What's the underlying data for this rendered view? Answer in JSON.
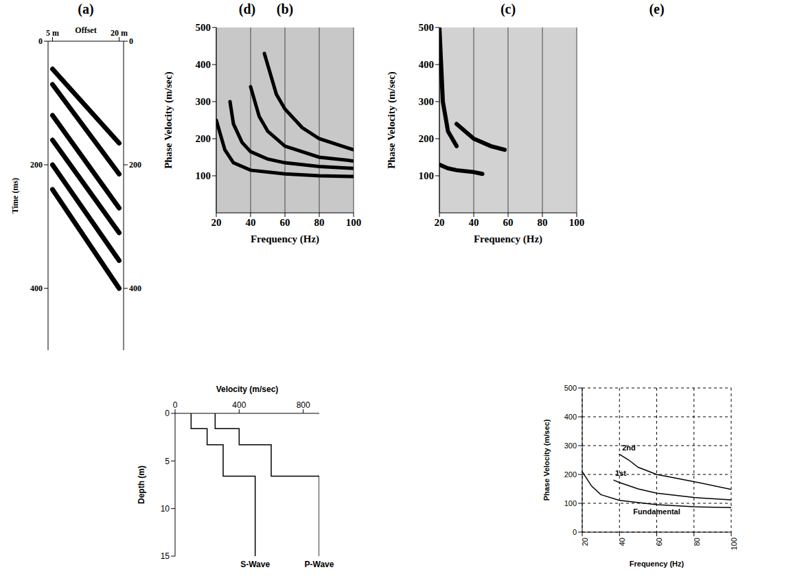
{
  "chart_data": [
    {
      "type": "line",
      "title": "(a)",
      "x_label": "Offset",
      "y_label": "Time (ms)",
      "xlim": [
        4,
        21
      ],
      "xticks": [
        {
          "value": 5,
          "label": "5 m"
        },
        {
          "value": 20,
          "label": "20 m"
        }
      ],
      "ylim": [
        0,
        500
      ],
      "yticks": [
        0,
        200,
        400
      ],
      "y2lim": [
        0,
        500
      ],
      "y2ticks": [
        0,
        200,
        400
      ],
      "color": "#000000",
      "series": [
        {
          "x": [
            5,
            20
          ],
          "values": [
            45,
            165
          ]
        },
        {
          "x": [
            5,
            20
          ],
          "values": [
            70,
            215
          ]
        },
        {
          "x": [
            5,
            20
          ],
          "values": [
            120,
            270
          ]
        },
        {
          "x": [
            5,
            20
          ],
          "values": [
            160,
            310
          ]
        },
        {
          "x": [
            5,
            20
          ],
          "values": [
            200,
            355
          ]
        },
        {
          "x": [
            5,
            20
          ],
          "values": [
            240,
            400
          ]
        }
      ]
    },
    {
      "type": "line",
      "title": "(b)",
      "x_label": "Frequency (Hz)",
      "y_label": "Phase Velocity (m/sec)",
      "xlim": [
        20,
        100
      ],
      "xticks": [
        20,
        40,
        60,
        80,
        100
      ],
      "ylim": [
        0,
        500
      ],
      "yticks": [
        100,
        200,
        300,
        400,
        500
      ],
      "grid": true,
      "color": "#000000",
      "series": [
        {
          "x": [
            20,
            25,
            30,
            40,
            60,
            80,
            100
          ],
          "values": [
            250,
            170,
            135,
            115,
            105,
            100,
            98
          ]
        },
        {
          "x": [
            28,
            30,
            35,
            40,
            50,
            60,
            80,
            100
          ],
          "values": [
            300,
            240,
            190,
            165,
            145,
            135,
            125,
            120
          ]
        },
        {
          "x": [
            40,
            45,
            50,
            60,
            80,
            100
          ],
          "values": [
            340,
            260,
            220,
            180,
            150,
            140
          ]
        },
        {
          "x": [
            48,
            55,
            60,
            70,
            80,
            100
          ],
          "values": [
            430,
            320,
            280,
            230,
            200,
            170
          ]
        }
      ]
    },
    {
      "type": "line",
      "title": "(c)",
      "x_label": "Frequency (Hz)",
      "y_label": "Phase Velocity (m/sec)",
      "xlim": [
        20,
        100
      ],
      "xticks": [
        20,
        40,
        60,
        80,
        100
      ],
      "ylim": [
        0,
        500
      ],
      "yticks": [
        100,
        200,
        300,
        400,
        500
      ],
      "grid": true,
      "color": "#000000",
      "series": [
        {
          "x": [
            20,
            25,
            30,
            40,
            45
          ],
          "values": [
            130,
            120,
            115,
            110,
            105
          ]
        },
        {
          "x": [
            20,
            22,
            25,
            30
          ],
          "values": [
            500,
            300,
            220,
            180
          ]
        },
        {
          "x": [
            30,
            35,
            40,
            50,
            58
          ],
          "values": [
            240,
            220,
            200,
            180,
            170
          ]
        }
      ]
    },
    {
      "type": "line",
      "title": "(d)",
      "x_label": "Velocity (m/sec)",
      "y_label": "Depth (m)",
      "xlim": [
        0,
        900
      ],
      "xticks": [
        0,
        400,
        800
      ],
      "ylim": [
        0,
        15
      ],
      "yticks": [
        0,
        5,
        10,
        15
      ],
      "color": "#000000",
      "series": [
        {
          "name": "S-Wave",
          "x": [
            100,
            100,
            200,
            200,
            300,
            300,
            500,
            500
          ],
          "values": [
            0,
            1.6,
            1.6,
            3.3,
            3.3,
            6.6,
            6.6,
            15
          ]
        },
        {
          "name": "P-Wave",
          "x": [
            250,
            250,
            400,
            400,
            600,
            600,
            900,
            900
          ],
          "values": [
            0,
            1.6,
            1.6,
            3.3,
            3.3,
            6.6,
            6.6,
            15
          ]
        }
      ]
    },
    {
      "type": "line",
      "title": "(e)",
      "x_label": "Frequency (Hz)",
      "y_label": "Phase Velocity (m/sec)",
      "xlim": [
        20,
        100
      ],
      "xticks": [
        20,
        40,
        60,
        80,
        100
      ],
      "ylim": [
        0,
        500
      ],
      "yticks": [
        0,
        100,
        200,
        300,
        400,
        500
      ],
      "grid": true,
      "color": "#000000",
      "series": [
        {
          "name": "2nd",
          "x": [
            40,
            45,
            50,
            60,
            80,
            100
          ],
          "values": [
            270,
            250,
            225,
            200,
            175,
            148
          ]
        },
        {
          "name": "1st",
          "x": [
            37,
            40,
            50,
            60,
            80,
            100
          ],
          "values": [
            180,
            172,
            150,
            135,
            120,
            112
          ]
        },
        {
          "name": "Fundamental",
          "x": [
            20,
            25,
            30,
            40,
            60,
            80,
            100
          ],
          "values": [
            210,
            160,
            130,
            110,
            95,
            88,
            85
          ]
        }
      ]
    }
  ]
}
